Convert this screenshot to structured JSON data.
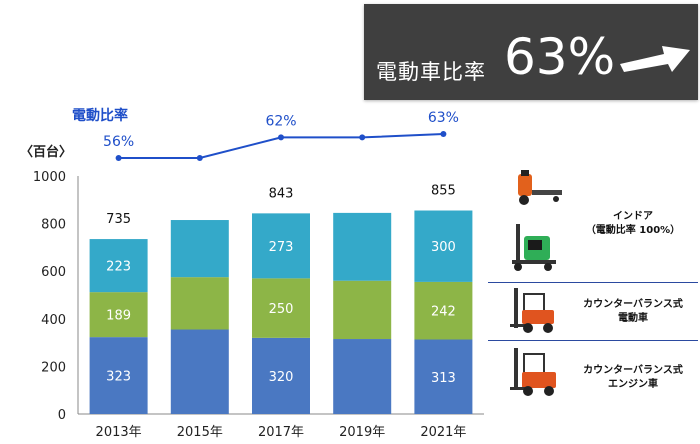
{
  "banner": {
    "label": "電動車比率",
    "value": "63%"
  },
  "chart_data": {
    "type": "bar",
    "stacked": true,
    "unit_label": "〈百台〉",
    "categories": [
      "2013年",
      "2015年",
      "2017年",
      "2019年",
      "2021年"
    ],
    "ylim": [
      0,
      1000
    ],
    "yticks": [
      0,
      200,
      400,
      600,
      800,
      1000
    ],
    "series": [
      {
        "name": "カウンターバランス式エンジン車",
        "color": "#4a78c2",
        "values": [
          323,
          355,
          320,
          315,
          313
        ],
        "labels": [
          "323",
          "",
          "320",
          "",
          "313"
        ]
      },
      {
        "name": "カウンターバランス式電動車",
        "color": "#8db547",
        "values": [
          189,
          220,
          250,
          245,
          242
        ],
        "labels": [
          "189",
          "",
          "250",
          "",
          "242"
        ]
      },
      {
        "name": "インドア（電動比率 100%）",
        "color": "#34a9c9",
        "values": [
          223,
          240,
          273,
          285,
          300
        ],
        "labels": [
          "223",
          "",
          "273",
          "",
          "300"
        ]
      }
    ],
    "totals": [
      "735",
      "",
      "843",
      "",
      "855"
    ],
    "ratio_line": {
      "title": "電動比率",
      "values": [
        56,
        56,
        62,
        62,
        63
      ],
      "labels": [
        "56%",
        "",
        "62%",
        "",
        "63%"
      ],
      "color": "#1f4fc9"
    },
    "grid": false
  },
  "legend": {
    "indoor": {
      "line1": "インドア",
      "line2": "（電動比率 100%）"
    },
    "electric": {
      "line1": "カウンターバランス式",
      "line2": "電動車"
    },
    "engine": {
      "line1": "カウンターバランス式",
      "line2": "エンジン車"
    }
  }
}
